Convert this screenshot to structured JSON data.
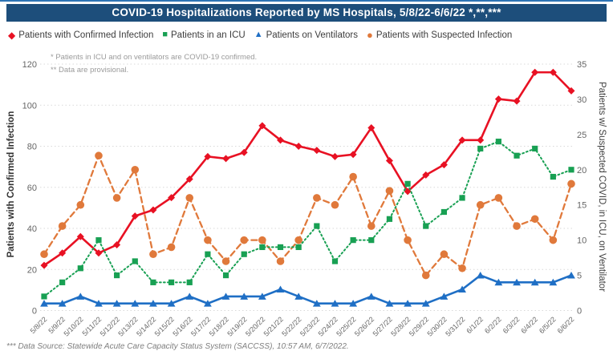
{
  "title": "COVID-19 Hospitalizations Reported by MS Hospitals, 5/8/22-6/6/22 *,**,***",
  "notes": {
    "note1": "* Patients in ICU and on ventilators are COVID-19 confirmed.",
    "note2": "** Data are provisional."
  },
  "source_note": "*** Data Source: Statewide Acute Care Capacity Status System (SACCSS), 10:57 AM, 6/7/2022.",
  "axes": {
    "left_title": "Patients with Confirmed Infection",
    "right_title": "Patients w/ Suspected COVID, in ICU, on Ventilator",
    "left_ticks": [
      0,
      20,
      40,
      60,
      80,
      100,
      120
    ],
    "right_ticks": [
      0,
      5,
      10,
      15,
      20,
      25,
      30,
      35
    ],
    "left_max": 120,
    "right_max": 35
  },
  "colors": {
    "header": "#1D4E7B",
    "header_edge": "#2E74B5",
    "confirmed": "#E81123",
    "icu": "#18A053",
    "ventilators": "#1F6FC5",
    "suspected": "#E0793B",
    "gridline": "#D9D9D9",
    "tick_text": "#666666"
  },
  "chart_data": {
    "type": "line",
    "title": "COVID-19 Hospitalizations Reported by MS Hospitals, 5/8/22-6/6/22 *,**,***",
    "legend_position": "top",
    "grid": "horizontal-dotted",
    "ylim_left": [
      0,
      120
    ],
    "ylim_right": [
      0,
      35
    ],
    "x": [
      "5/8/22",
      "5/9/22",
      "5/10/22",
      "5/11/22",
      "5/12/22",
      "5/13/22",
      "5/14/22",
      "5/15/22",
      "5/16/22",
      "5/17/22",
      "5/18/22",
      "5/19/22",
      "5/20/22",
      "5/21/22",
      "5/22/22",
      "5/23/22",
      "5/24/22",
      "5/25/22",
      "5/26/22",
      "5/27/22",
      "5/28/22",
      "5/29/22",
      "5/30/22",
      "5/31/22",
      "6/1/22",
      "6/2/22",
      "6/3/22",
      "6/4/22",
      "6/5/22",
      "6/6/22"
    ],
    "series": [
      {
        "name": "Patients with Confirmed Infection",
        "axis": "left",
        "marker": "diamond",
        "line": "solid",
        "color": "#E81123",
        "values": [
          22,
          28,
          36,
          28,
          32,
          46,
          49,
          55,
          64,
          75,
          74,
          77,
          90,
          83,
          80,
          78,
          75,
          76,
          89,
          73,
          58,
          66,
          71,
          83,
          83,
          103,
          102,
          116,
          116,
          107
        ]
      },
      {
        "name": "Patients in an ICU",
        "axis": "right",
        "marker": "square",
        "line": "dot",
        "color": "#18A053",
        "values": [
          2,
          4,
          6,
          10,
          5,
          7,
          4,
          4,
          4,
          8,
          5,
          8,
          9,
          9,
          9,
          12,
          7,
          10,
          10,
          13,
          18,
          12,
          14,
          16,
          23,
          24,
          22,
          23,
          19,
          20
        ]
      },
      {
        "name": "Patients on Ventilators",
        "axis": "right",
        "marker": "triangle",
        "line": "solid",
        "color": "#1F6FC5",
        "values": [
          1,
          1,
          2,
          1,
          1,
          1,
          1,
          1,
          2,
          1,
          2,
          2,
          2,
          3,
          2,
          1,
          1,
          1,
          2,
          1,
          1,
          1,
          2,
          3,
          5,
          4,
          4,
          4,
          4,
          5
        ]
      },
      {
        "name": "Patients with Suspected Infection",
        "axis": "right",
        "marker": "circle",
        "line": "dash",
        "color": "#E0793B",
        "values": [
          8,
          12,
          15,
          22,
          16,
          20,
          8,
          9,
          16,
          10,
          7,
          10,
          10,
          7,
          10,
          16,
          15,
          19,
          12,
          17,
          10,
          5,
          8,
          6,
          15,
          16,
          12,
          13,
          10,
          18
        ]
      }
    ]
  }
}
